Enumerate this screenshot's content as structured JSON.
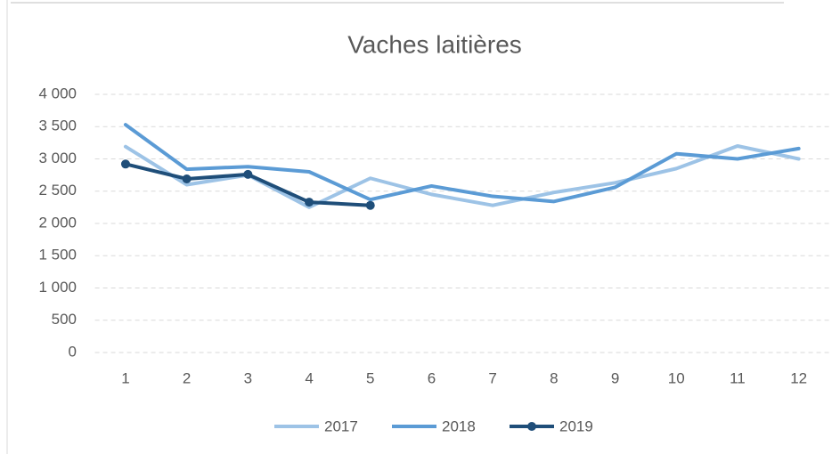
{
  "chart_data": {
    "type": "line",
    "title": "Vaches laitières",
    "categories": [
      "1",
      "2",
      "3",
      "4",
      "5",
      "6",
      "7",
      "8",
      "9",
      "10",
      "11",
      "12"
    ],
    "series": [
      {
        "name": "2017",
        "color": "#9dc3e6",
        "marker": false,
        "values": [
          3190,
          2600,
          2750,
          2250,
          2700,
          2450,
          2280,
          2480,
          2630,
          2850,
          3200,
          3000
        ]
      },
      {
        "name": "2018",
        "color": "#5b9bd5",
        "marker": false,
        "values": [
          3530,
          2840,
          2880,
          2800,
          2370,
          2580,
          2420,
          2340,
          2560,
          3080,
          3000,
          3160
        ]
      },
      {
        "name": "2019",
        "color": "#1f4e79",
        "marker": true,
        "values": [
          2920,
          2690,
          2760,
          2330,
          2280,
          null,
          null,
          null,
          null,
          null,
          null,
          null
        ]
      }
    ],
    "ylim": [
      0,
      4000
    ],
    "yticks": [
      0,
      500,
      {
        "value": 1000,
        "label": "1 000"
      },
      {
        "value": 1500,
        "label": "1 500"
      },
      {
        "value": 2000,
        "label": "2 000"
      },
      {
        "value": 2500,
        "label": "2 500"
      },
      {
        "value": 3000,
        "label": "3 000"
      },
      {
        "value": 3500,
        "label": "3 500"
      },
      {
        "value": 4000,
        "label": "4 000"
      }
    ],
    "grid": true,
    "legend": "bottom"
  }
}
